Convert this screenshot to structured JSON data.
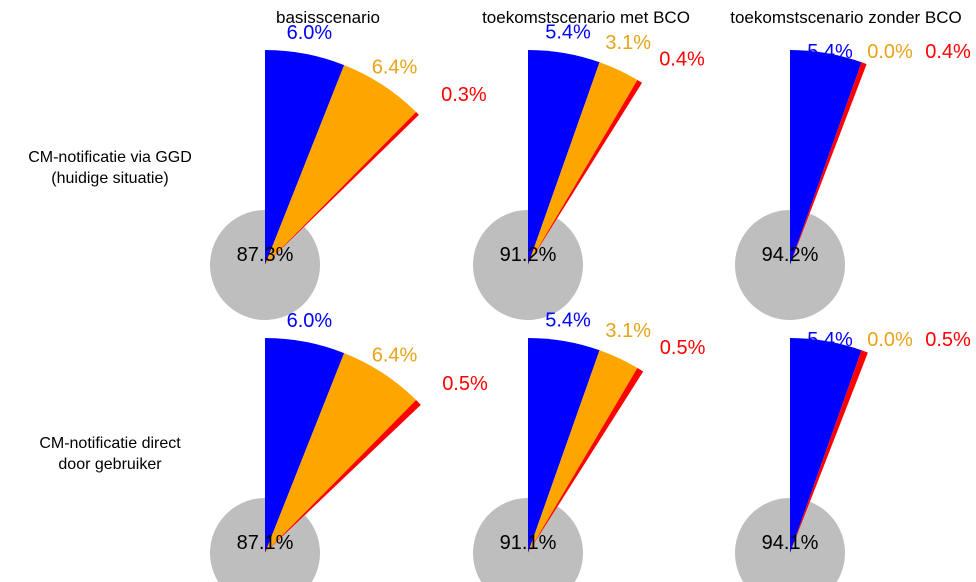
{
  "chart_data": {
    "type": "pie",
    "colors": {
      "blue": "#0000ff",
      "orange": "#ffa500",
      "red": "#ff0000",
      "gray": "#bebebe",
      "orange_label": "#e8a317"
    },
    "columns": [
      "basisscenario",
      "toekomstscenario met BCO",
      "toekomstscenario zonder BCO"
    ],
    "rows": [
      {
        "label_lines": [
          "CM-notificatie via GGD",
          "(huidige situatie)"
        ],
        "charts": [
          {
            "slices": [
              {
                "color": "blue",
                "value": 6.0,
                "label": "6.0%"
              },
              {
                "color": "orange",
                "value": 6.4,
                "label": "6.4%"
              },
              {
                "color": "red",
                "value": 0.3,
                "label": "0.3%"
              }
            ],
            "remainder": {
              "color": "gray",
              "value": 87.3,
              "label": "87.3%"
            }
          },
          {
            "slices": [
              {
                "color": "blue",
                "value": 5.4,
                "label": "5.4%"
              },
              {
                "color": "orange",
                "value": 3.1,
                "label": "3.1%"
              },
              {
                "color": "red",
                "value": 0.4,
                "label": "0.4%"
              }
            ],
            "remainder": {
              "color": "gray",
              "value": 91.2,
              "label": "91.2%"
            }
          },
          {
            "slices": [
              {
                "color": "blue",
                "value": 5.4,
                "label": "5.4%"
              },
              {
                "color": "orange",
                "value": 0.0,
                "label": "0.0%"
              },
              {
                "color": "red",
                "value": 0.4,
                "label": "0.4%"
              }
            ],
            "remainder": {
              "color": "gray",
              "value": 94.2,
              "label": "94.2%"
            }
          }
        ]
      },
      {
        "label_lines": [
          "CM-notificatie direct",
          "door gebruiker"
        ],
        "charts": [
          {
            "slices": [
              {
                "color": "blue",
                "value": 6.0,
                "label": "6.0%"
              },
              {
                "color": "orange",
                "value": 6.4,
                "label": "6.4%"
              },
              {
                "color": "red",
                "value": 0.5,
                "label": "0.5%"
              }
            ],
            "remainder": {
              "color": "gray",
              "value": 87.1,
              "label": "87.1%"
            }
          },
          {
            "slices": [
              {
                "color": "blue",
                "value": 5.4,
                "label": "5.4%"
              },
              {
                "color": "orange",
                "value": 3.1,
                "label": "3.1%"
              },
              {
                "color": "red",
                "value": 0.5,
                "label": "0.5%"
              }
            ],
            "remainder": {
              "color": "gray",
              "value": 91.1,
              "label": "91.1%"
            }
          },
          {
            "slices": [
              {
                "color": "blue",
                "value": 5.4,
                "label": "5.4%"
              },
              {
                "color": "orange",
                "value": 0.0,
                "label": "0.0%"
              },
              {
                "color": "red",
                "value": 0.5,
                "label": "0.5%"
              }
            ],
            "remainder": {
              "color": "gray",
              "value": 94.1,
              "label": "94.1%"
            }
          }
        ]
      }
    ]
  }
}
